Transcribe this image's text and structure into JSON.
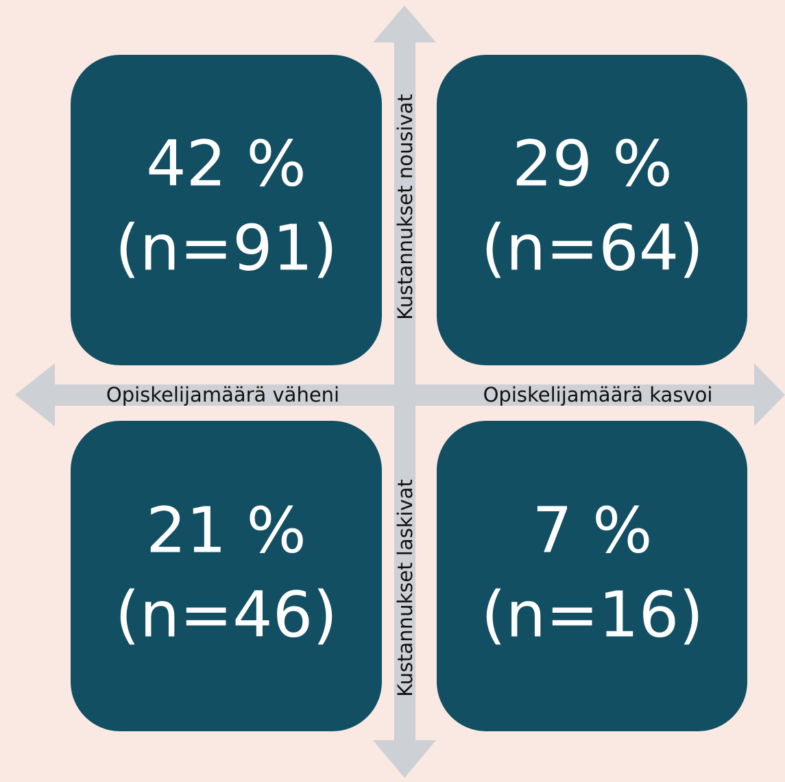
{
  "quadrants": [
    {
      "percent": "42 %",
      "count": "(n=91)"
    },
    {
      "percent": "29 %",
      "count": "(n=64)"
    },
    {
      "percent": "21 %",
      "count": "(n=46)"
    },
    {
      "percent": "7 %",
      "count": "(n=16)"
    }
  ],
  "axes": {
    "x_negative": "Opiskelijamäärä väheni",
    "x_positive": "Opiskelijamäärä kasvoi",
    "y_positive": "Kustannukset nousivat",
    "y_negative": "Kustannukset laskivat"
  }
}
